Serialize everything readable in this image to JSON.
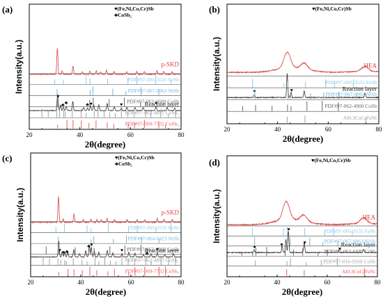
{
  "chart_data": [
    {
      "panel": "(a)",
      "type": "line",
      "ylabel": "Intensity(a.u.)",
      "xlabel": "2θ(degree)",
      "xlim": [
        20,
        80
      ],
      "xticks": [
        20,
        40,
        60,
        80
      ],
      "legend": [
        {
          "symbol": "♥",
          "label": "(Fe,Ni,Co,Cr)Sb"
        },
        {
          "symbol": "♣",
          "label": "CoSb₂"
        }
      ],
      "series": [
        {
          "name": "Reaction layer",
          "color": "#333333",
          "offset": 0.85,
          "scale": 0.13,
          "peaks": [
            [
              31.2,
              1.0
            ],
            [
              32.4,
              0.35
            ],
            [
              33.5,
              0.2
            ],
            [
              34.6,
              0.25
            ],
            [
              37.2,
              0.55
            ],
            [
              41.5,
              0.2
            ],
            [
              43.0,
              0.15
            ],
            [
              44.2,
              0.3
            ],
            [
              45.5,
              0.35
            ],
            [
              47.5,
              0.35
            ],
            [
              50.8,
              0.45
            ],
            [
              53.6,
              0.25
            ],
            [
              56.4,
              0.15
            ],
            [
              58.6,
              0.2
            ],
            [
              61.8,
              0.2
            ],
            [
              65.0,
              0.2
            ],
            [
              70.1,
              0.25
            ],
            [
              74.5,
              0.2
            ],
            [
              77.5,
              0.15
            ]
          ],
          "markers": [
            {
              "symbol": "♥",
              "x": 31.4
            },
            {
              "symbol": "♣",
              "x": 33.3
            },
            {
              "symbol": "♣",
              "x": 34.6
            },
            {
              "symbol": "♣",
              "x": 43.0
            },
            {
              "symbol": "♥",
              "x": 44.4
            },
            {
              "symbol": "♥",
              "x": 56.4
            },
            {
              "symbol": "♥",
              "x": 70.2
            }
          ]
        },
        {
          "name": "p-SKD",
          "color": "#e04040",
          "offset": 0.56,
          "scale": 0.21,
          "peaks": [
            [
              31.1,
              1.0
            ],
            [
              33.0,
              0.12
            ],
            [
              37.3,
              0.32
            ],
            [
              41.0,
              0.1
            ],
            [
              44.0,
              0.12
            ],
            [
              46.5,
              0.12
            ],
            [
              48.2,
              0.1
            ],
            [
              50.5,
              0.15
            ],
            [
              53.5,
              0.1
            ],
            [
              58.5,
              0.1
            ],
            [
              62.5,
              0.1
            ],
            [
              65.5,
              0.1
            ],
            [
              70.5,
              0.15
            ],
            [
              73.2,
              0.12
            ],
            [
              76.5,
              0.1
            ]
          ],
          "markers": []
        }
      ],
      "references": [
        {
          "label": "PDF#97-005-3535 FeSb",
          "color": "#8ec8e8",
          "lines": [
            30.1,
            33.5,
            42.5,
            44.0,
            51.0,
            59.0,
            62.5,
            70.0,
            76.0
          ]
        },
        {
          "label": "PDF#97-067-0963 NiSb",
          "color": "#6fb7e0",
          "lines": [
            31.0,
            44.1,
            45.2,
            53.0,
            58.2,
            64.2,
            71.2
          ]
        },
        {
          "label": "PDF#97-062-6689 CoSb",
          "color": "#666666",
          "lines": [
            31.3,
            43.9,
            45.3,
            51.6,
            57.6,
            64.0,
            70.5
          ]
        },
        {
          "label": "PDF#97-062-4891 CoSb₂",
          "color": "#a0a0a0",
          "lines": [
            25.0,
            27.5,
            30.9,
            32.0,
            33.6,
            34.2,
            37.0,
            40.5,
            42.5,
            45.7,
            47.2,
            49.6,
            51.8,
            54.0,
            56.4,
            58.9,
            61.5,
            66.0,
            68.1,
            72.0,
            75.0,
            77.8
          ]
        },
        {
          "label": "PDF#97-009-7732 CoSb₃",
          "color": "#f05a5a",
          "lines": [
            31.2,
            34.9,
            37.3,
            40.6,
            43.6,
            46.4,
            50.8,
            53.4,
            59.1,
            61.6,
            65.5,
            71.2,
            73.8
          ]
        }
      ]
    },
    {
      "panel": "(b)",
      "type": "line",
      "ylabel": "Intensity(a.u.)",
      "xlabel": "2θ(degree)",
      "xlim": [
        20,
        80
      ],
      "xticks": [
        20,
        40,
        60,
        80
      ],
      "legend": [
        {
          "symbol": "♥",
          "label": "(Fe,Ni,Co,Cr)Sb"
        }
      ],
      "series": [
        {
          "name": "Reaction layer",
          "color": "#333333",
          "offset": 0.78,
          "scale": 0.2,
          "peaks": [
            [
              30.8,
              0.12
            ],
            [
              43.8,
              1.0
            ],
            [
              45.3,
              0.22
            ],
            [
              50.5,
              0.28
            ],
            [
              74.5,
              0.18
            ]
          ],
          "markers": [
            {
              "symbol": "♥",
              "x": 30.9
            },
            {
              "symbol": "♥",
              "x": 45.5
            }
          ]
        },
        {
          "name": "HEA",
          "color": "#d83a3a",
          "offset": 0.57,
          "scale": 0.13,
          "peaks": [
            [
              43.8,
              1.0
            ],
            [
              50.5,
              0.4
            ],
            [
              74.5,
              0.3
            ]
          ],
          "broad": true,
          "markers": []
        }
      ],
      "references": [
        {
          "label": "PDF#97-005-3535 FeSb",
          "color": "#8ec8e8",
          "lines": [
            30.1,
            42.5,
            44.0,
            51.0,
            59.0,
            62.5,
            70.0
          ]
        },
        {
          "label": "PDF#97-067-0963 NiSb",
          "color": "#6fb7e0",
          "lines": [
            31.0,
            44.1,
            45.2,
            53.0,
            58.2,
            64.2,
            71.2
          ]
        },
        {
          "label": "PDF#97-062-4900 CoSb",
          "color": "#666666",
          "lines": [
            26.2,
            31.3,
            37.8,
            43.9,
            45.3,
            51.6,
            57.6,
            64.0
          ]
        },
        {
          "label": "Al0.3CoCrFeNi",
          "color": "#a0a0a0",
          "lines": [
            43.8,
            50.8,
            74.8
          ]
        }
      ]
    },
    {
      "panel": "(c)",
      "type": "line",
      "ylabel": "Intensity(a.u.)",
      "xlabel": "2θ(degree)",
      "xlim": [
        20,
        80
      ],
      "xticks": [
        20,
        40,
        60,
        80
      ],
      "legend": [
        {
          "symbol": "♥",
          "label": "(Fe,Ni,Co,Cr)Sb"
        },
        {
          "symbol": "♣",
          "label": "CoSb₂"
        }
      ],
      "series": [
        {
          "name": "Reaction layer",
          "color": "#333333",
          "offset": 0.84,
          "scale": 0.13,
          "peaks": [
            [
              31.2,
              1.0
            ],
            [
              32.6,
              0.35
            ],
            [
              33.6,
              0.3
            ],
            [
              34.8,
              0.3
            ],
            [
              37.2,
              0.45
            ],
            [
              39.5,
              0.2
            ],
            [
              42.0,
              0.4
            ],
            [
              43.4,
              0.7
            ],
            [
              44.2,
              0.6
            ],
            [
              45.4,
              0.35
            ],
            [
              47.2,
              0.3
            ],
            [
              50.6,
              0.4
            ],
            [
              52.8,
              0.25
            ],
            [
              56.4,
              0.2
            ],
            [
              59.2,
              0.3
            ],
            [
              61.6,
              0.25
            ],
            [
              65.0,
              0.15
            ],
            [
              68.0,
              0.2
            ],
            [
              70.5,
              0.25
            ],
            [
              73.5,
              0.15
            ],
            [
              77.0,
              0.2
            ]
          ],
          "markers": [
            {
              "symbol": "♥",
              "x": 31.6
            },
            {
              "symbol": "♣",
              "x": 33.2
            },
            {
              "symbol": "♣",
              "x": 34.5
            },
            {
              "symbol": "♣",
              "x": 43.2
            },
            {
              "symbol": "♥",
              "x": 44.3
            },
            {
              "symbol": "♥",
              "x": 56.4
            },
            {
              "symbol": "♣",
              "x": 66.4
            },
            {
              "symbol": "♥",
              "x": 70.5
            }
          ]
        },
        {
          "name": "p-SKD",
          "color": "#e04040",
          "offset": 0.56,
          "scale": 0.21,
          "peaks": [
            [
              31.1,
              1.0
            ],
            [
              33.0,
              0.12
            ],
            [
              37.3,
              0.32
            ],
            [
              41.0,
              0.1
            ],
            [
              44.0,
              0.12
            ],
            [
              46.5,
              0.12
            ],
            [
              48.2,
              0.1
            ],
            [
              50.5,
              0.15
            ],
            [
              53.5,
              0.1
            ],
            [
              58.5,
              0.1
            ],
            [
              62.5,
              0.1
            ],
            [
              65.5,
              0.1
            ],
            [
              70.5,
              0.15
            ],
            [
              73.2,
              0.12
            ],
            [
              76.5,
              0.1
            ]
          ],
          "markers": []
        }
      ],
      "references": [
        {
          "label": "PDF#97-005-3535 FeSb",
          "color": "#8ec8e8",
          "lines": [
            30.1,
            33.5,
            42.5,
            44.0,
            51.0,
            59.0,
            62.5,
            70.0,
            76.0
          ]
        },
        {
          "label": "PDF#97-064-6423 NiSb",
          "color": "#6fb7e0",
          "lines": [
            31.0,
            44.1,
            45.2,
            53.0,
            58.2,
            64.2,
            71.2
          ]
        },
        {
          "label": "PDF#97-062-4900 CoSb",
          "color": "#666666",
          "lines": [
            26.2,
            31.3,
            37.8,
            43.9,
            45.3,
            51.6,
            57.6,
            64.0
          ]
        },
        {
          "label": "PDF#97-062-4891 CoSb₂",
          "color": "#a0a0a0",
          "lines": [
            25.0,
            27.5,
            30.9,
            32.0,
            33.6,
            34.2,
            37.0,
            40.5,
            42.5,
            45.7,
            47.2,
            49.6,
            51.8,
            54.0,
            56.4,
            58.9,
            61.5,
            66.0,
            68.1,
            72.0,
            75.0,
            77.8
          ]
        },
        {
          "label": "PDF#97-009-7732 CoSb₃",
          "color": "#f05a5a",
          "lines": [
            31.2,
            34.9,
            37.3,
            40.6,
            43.6,
            46.4,
            50.8,
            53.4,
            59.1,
            61.6,
            65.5,
            71.2,
            73.8
          ]
        }
      ]
    },
    {
      "panel": "(d)",
      "type": "line",
      "ylabel": "Intensity(a.u.)",
      "xlabel": "2θ(degree)",
      "xlim": [
        20,
        80
      ],
      "xticks": [
        20,
        40,
        60,
        80
      ],
      "legend": [
        {
          "symbol": "♥",
          "label": "(Fe,Ni,Co,Cr)Sb"
        }
      ],
      "series": [
        {
          "name": "Reaction layer",
          "color": "#333333",
          "offset": 0.8,
          "scale": 0.18,
          "peaks": [
            [
              30.8,
              0.12
            ],
            [
              42.0,
              0.3
            ],
            [
              43.5,
              0.6
            ],
            [
              44.5,
              1.0
            ],
            [
              50.8,
              0.45
            ],
            [
              64.5,
              0.1
            ],
            [
              74.5,
              0.15
            ]
          ],
          "markers": [
            {
              "symbol": "♥",
              "x": 31.0
            },
            {
              "symbol": "♥",
              "x": 41.8
            },
            {
              "symbol": "♥",
              "x": 44.6
            },
            {
              "symbol": "♥",
              "x": 51.0
            },
            {
              "symbol": "♥",
              "x": 65.0
            }
          ]
        },
        {
          "name": "HEA",
          "color": "#d83a3a",
          "offset": 0.57,
          "scale": 0.15,
          "peaks": [
            [
              43.6,
              1.0
            ],
            [
              50.6,
              0.35
            ],
            [
              74.5,
              0.3
            ]
          ],
          "broad": true,
          "markers": []
        }
      ],
      "references": [
        {
          "label": "PDF#97-005-3535 FeSb",
          "color": "#8ec8e8",
          "lines": [
            30.1,
            42.5,
            44.0,
            51.0,
            59.0,
            62.5,
            70.0
          ]
        },
        {
          "label": "PDF#97-067-0963 NiSb",
          "color": "#6fb7e0",
          "lines": [
            31.0,
            44.1,
            45.2,
            53.0,
            58.2,
            64.2,
            71.2
          ]
        },
        {
          "label": "PDF#97-062-6689 CrSb",
          "color": "#666666",
          "lines": [
            25.9,
            30.2,
            31.5,
            35.8,
            43.2,
            46.5,
            50.2,
            56.3,
            60.0
          ]
        },
        {
          "label": "PDF#97-016-9169 CoSb",
          "color": "#a0a0a0",
          "lines": [
            31.3,
            43.9,
            45.3,
            51.6,
            57.6,
            64.0
          ]
        },
        {
          "label": "Al0.3CoCrFeNi",
          "color": "#f05a5a",
          "lines": [
            43.8,
            50.8,
            74.8
          ]
        }
      ]
    }
  ]
}
